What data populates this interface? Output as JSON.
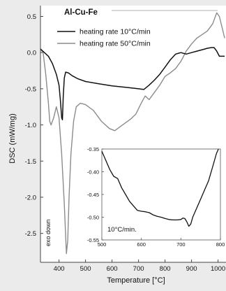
{
  "chart_data": {
    "type": "line",
    "title": "Al-Cu-Fe",
    "xlabel": "Temperature [°C]",
    "ylabel": "DSC (mW/mg)",
    "xlim": [
      330,
      1030
    ],
    "ylim": [
      -2.9,
      0.65
    ],
    "xticks": [
      400,
      500,
      600,
      700,
      800,
      900,
      1000
    ],
    "yticks": [
      0.5,
      0.0,
      -0.5,
      -1.0,
      -1.5,
      -2.0,
      -2.5
    ],
    "ytick_labels": [
      "0.5",
      "0.0",
      "-0.5",
      "-1.0",
      "-1.5",
      "-2.0",
      "-2.5"
    ],
    "annotation": "exo down",
    "legend_position": "top",
    "series": [
      {
        "name": "heating rate 10°C/min",
        "color": "#111111",
        "x": [
          330,
          345,
          360,
          375,
          390,
          400,
          405,
          410,
          413,
          416,
          420,
          425,
          435,
          450,
          470,
          500,
          550,
          600,
          650,
          700,
          720,
          740,
          760,
          780,
          800,
          820,
          840,
          860,
          880,
          900,
          920,
          940,
          960,
          975,
          985,
          995,
          1005,
          1015,
          1025
        ],
        "y": [
          0.05,
          0.0,
          -0.05,
          -0.15,
          -0.3,
          -0.45,
          -0.65,
          -0.9,
          -0.93,
          -0.6,
          -0.35,
          -0.27,
          -0.28,
          -0.32,
          -0.36,
          -0.4,
          -0.43,
          -0.46,
          -0.48,
          -0.5,
          -0.51,
          -0.45,
          -0.38,
          -0.3,
          -0.2,
          -0.1,
          -0.02,
          0.0,
          -0.02,
          0.0,
          0.02,
          0.04,
          0.06,
          0.07,
          0.07,
          0.02,
          -0.05,
          -0.05,
          -0.05
        ]
      },
      {
        "name": "heating rate 50°C/min",
        "color": "#8c8c8c",
        "x": [
          330,
          340,
          350,
          360,
          365,
          370,
          380,
          390,
          400,
          410,
          420,
          428,
          433,
          438,
          445,
          455,
          465,
          480,
          500,
          530,
          560,
          590,
          610,
          640,
          670,
          690,
          710,
          725,
          740,
          760,
          780,
          800,
          820,
          840,
          860,
          880,
          900,
          920,
          940,
          960,
          980,
          995,
          1005,
          1015,
          1025
        ],
        "y": [
          0.05,
          0.0,
          -0.3,
          -0.7,
          -0.95,
          -1.0,
          -0.9,
          -0.75,
          -0.9,
          -1.4,
          -2.1,
          -2.78,
          -2.6,
          -2.0,
          -1.4,
          -0.95,
          -0.75,
          -0.7,
          -0.72,
          -0.8,
          -0.95,
          -1.05,
          -1.08,
          -1.0,
          -0.92,
          -0.85,
          -0.7,
          -0.6,
          -0.65,
          -0.55,
          -0.45,
          -0.33,
          -0.28,
          -0.22,
          -0.12,
          0.02,
          0.12,
          0.2,
          0.25,
          0.3,
          0.4,
          0.55,
          0.5,
          0.35,
          0.2
        ]
      }
    ],
    "inset": {
      "type": "line",
      "label": "10°C/min.",
      "xlim": [
        500,
        800
      ],
      "ylim": [
        -0.55,
        -0.35
      ],
      "xticks": [
        500,
        600,
        700,
        800
      ],
      "yticks": [
        -0.35,
        -0.4,
        -0.45,
        -0.5,
        -0.55
      ],
      "ytick_labels": [
        "-0.35",
        "-0.40",
        "-0.45",
        "-0.50",
        "-0.55"
      ],
      "series": [
        {
          "name": "heating rate 10°C/min",
          "color": "#111111",
          "x": [
            500,
            510,
            520,
            530,
            540,
            550,
            560,
            570,
            580,
            590,
            600,
            610,
            620,
            630,
            640,
            650,
            660,
            670,
            680,
            690,
            700,
            705,
            710,
            715,
            720,
            725,
            730,
            740,
            750,
            760,
            770,
            780,
            790,
            795
          ],
          "y": [
            -0.355,
            -0.375,
            -0.395,
            -0.41,
            -0.415,
            -0.435,
            -0.45,
            -0.465,
            -0.475,
            -0.485,
            -0.487,
            -0.488,
            -0.49,
            -0.495,
            -0.498,
            -0.5,
            -0.503,
            -0.505,
            -0.506,
            -0.506,
            -0.505,
            -0.502,
            -0.503,
            -0.51,
            -0.52,
            -0.515,
            -0.5,
            -0.48,
            -0.46,
            -0.44,
            -0.42,
            -0.39,
            -0.36,
            -0.35
          ]
        }
      ]
    }
  }
}
